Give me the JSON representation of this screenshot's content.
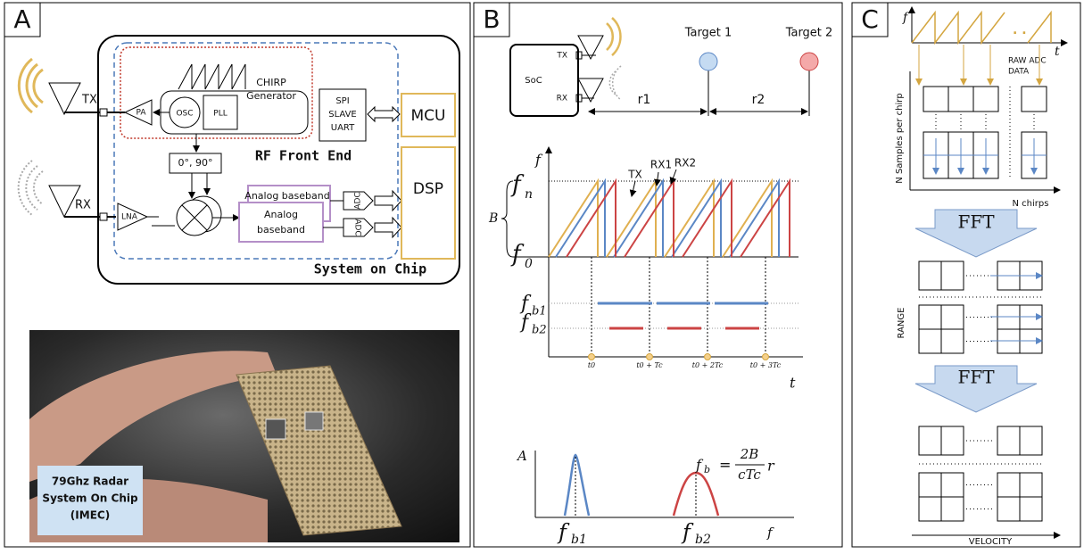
{
  "panel_a": {
    "label": "A",
    "tx": "TX",
    "rx": "RX",
    "pa": "PA",
    "osc": "OSC",
    "pll": "PLL",
    "chirp_generator": [
      "CHIRP",
      "Generator"
    ],
    "interface": [
      "SPI",
      "SLAVE",
      "UART"
    ],
    "mcu": "MCU",
    "dsp": "DSP",
    "rf_front_end": "RF Front End",
    "phase_shift": "0°, 90°",
    "lna": "LNA",
    "analog_baseband_back": "Analog baseband",
    "analog_baseband_front": [
      "Analog",
      "baseband"
    ],
    "adc": [
      "ADC",
      "ADC"
    ],
    "system_on_chip": "System on Chip",
    "photo_caption": [
      "79Ghz Radar",
      "System On Chip",
      "(IMEC)"
    ]
  },
  "panel_b": {
    "label": "B",
    "soc": "SoC",
    "soc_tx": "TX",
    "soc_rx": "RX",
    "targets": [
      "Target 1",
      "Target 2"
    ],
    "ranges": [
      "r1",
      "r2"
    ],
    "chirp_plot": {
      "y_axis": "f",
      "f_n": {
        "symbol": "f",
        "sub": "n"
      },
      "f_0": {
        "symbol": "f",
        "sub": "0"
      },
      "bandwidth": "B",
      "series": [
        "TX",
        "RX1",
        "RX2"
      ],
      "beat": [
        {
          "symbol": "f",
          "sub": "b1"
        },
        {
          "symbol": "f",
          "sub": "b2"
        }
      ],
      "time_ticks": [
        "t0",
        "t0 + Tc",
        "t0 + 2Tc",
        "t0 + 3Tc"
      ],
      "x_axis": "t"
    },
    "spectrum": {
      "y_axis": "A",
      "peaks": [
        {
          "symbol": "f",
          "sub": "b1"
        },
        {
          "symbol": "f",
          "sub": "b2"
        }
      ],
      "x_axis": "f",
      "formula": {
        "lhs": "f",
        "lhs_sub": "b",
        "equals": "=",
        "numerator": "2B",
        "denominator": "cTc",
        "factor": "r"
      }
    }
  },
  "panel_c": {
    "label": "C",
    "f_axis": "f",
    "t_axis": "t",
    "raw_adc": [
      "RAW ADC",
      "DATA"
    ],
    "samples_axis": "N Samples per chirp",
    "chirps_axis": "N chirps",
    "fft": [
      "FFT",
      "FFT"
    ],
    "range_axis": "RANGE",
    "velocity_axis": "VELOCITY"
  }
}
